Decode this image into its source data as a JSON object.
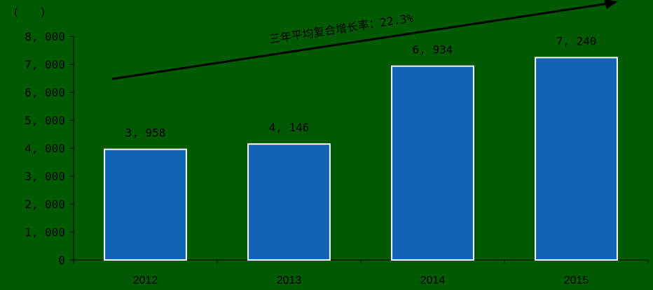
{
  "chart_data": {
    "type": "bar",
    "unit_label": "（　　）",
    "categories": [
      "2012",
      "2013",
      "2014",
      "2015"
    ],
    "values": [
      3958,
      4146,
      6934,
      7240
    ],
    "data_labels": [
      "3, 958",
      "4, 146",
      "6, 934",
      "7, 240"
    ],
    "yticks": [
      "0",
      "1, 000",
      "2, 000",
      "3, 000",
      "4, 000",
      "5, 000",
      "6, 000",
      "7, 000",
      "8, 000"
    ],
    "ylim": [
      0,
      8000
    ],
    "annotation": "三年平均复合增长率：22.3%",
    "colors": {
      "background": "#005b00",
      "bar_fill": "#1164b4",
      "bar_stroke": "#ffffff",
      "text": "#000000"
    },
    "grid": false,
    "legend": "none"
  }
}
